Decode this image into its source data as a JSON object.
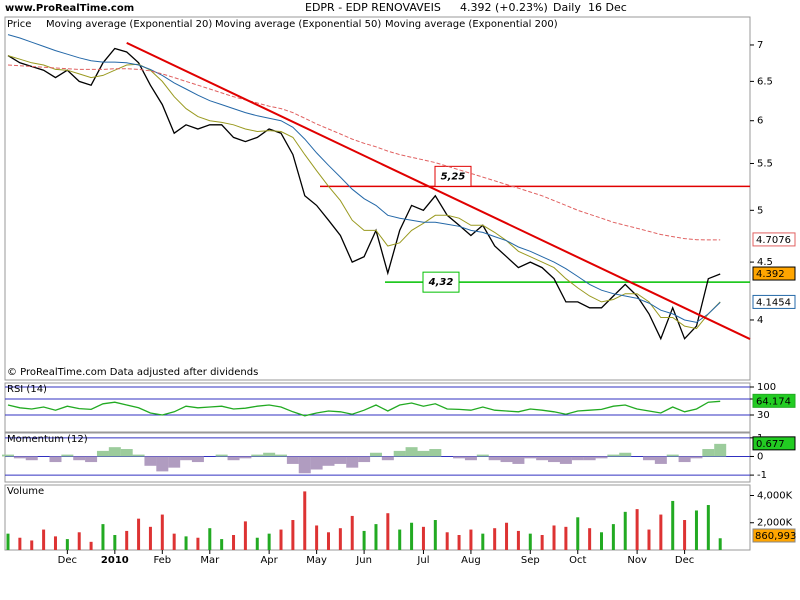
{
  "site": "www.ProRealTime.com",
  "header": {
    "symbol": "EDPR - EDP RENOVAVEIS",
    "quote": "4.392 (+0.23%)",
    "period": "Daily",
    "date": "16 Dec"
  },
  "chart_data": [
    {
      "type": "line",
      "title": "Price",
      "log_scale": true,
      "ylim": [
        3.54,
        7.41
      ],
      "yticks": [
        4,
        4.5,
        5,
        5.5,
        6,
        6.5,
        7
      ],
      "note": "© ProRealTime.com  Data adjusted after dividends",
      "series": [
        {
          "name": "Price",
          "color": "#000000",
          "show_last": true,
          "last_bg": "#ffa500",
          "values": [
            6.85,
            6.75,
            6.7,
            6.65,
            6.55,
            6.65,
            6.5,
            6.45,
            6.75,
            6.95,
            6.9,
            6.75,
            6.45,
            6.2,
            5.85,
            5.95,
            5.9,
            5.95,
            5.95,
            5.8,
            5.75,
            5.8,
            5.9,
            5.85,
            5.6,
            5.15,
            5.05,
            4.9,
            4.75,
            4.5,
            4.55,
            4.8,
            4.4,
            4.8,
            5.05,
            5.0,
            5.15,
            4.95,
            4.85,
            4.75,
            4.85,
            4.65,
            4.55,
            4.45,
            4.5,
            4.45,
            4.35,
            4.15,
            4.15,
            4.1,
            4.1,
            4.2,
            4.3,
            4.2,
            4.05,
            3.85,
            4.1,
            3.85,
            3.95,
            4.35,
            4.392
          ]
        },
        {
          "name": "Moving average (Exponential 20)",
          "color": "#9a9a20",
          "values": [
            6.85,
            6.8,
            6.75,
            6.72,
            6.66,
            6.65,
            6.6,
            6.55,
            6.58,
            6.65,
            6.72,
            6.73,
            6.65,
            6.5,
            6.3,
            6.15,
            6.05,
            6.0,
            5.98,
            5.95,
            5.9,
            5.87,
            5.88,
            5.87,
            5.8,
            5.6,
            5.42,
            5.25,
            5.1,
            4.9,
            4.8,
            4.8,
            4.65,
            4.68,
            4.8,
            4.87,
            4.95,
            4.95,
            4.92,
            4.85,
            4.85,
            4.78,
            4.7,
            4.6,
            4.55,
            4.5,
            4.45,
            4.35,
            4.27,
            4.2,
            4.15,
            4.17,
            4.22,
            4.22,
            4.15,
            4.02,
            4.02,
            3.95,
            3.93,
            4.05,
            4.15
          ]
        },
        {
          "name": "Moving average (Exponential 50)",
          "color": "#2468a8",
          "show_last": true,
          "values": [
            7.15,
            7.1,
            7.04,
            6.98,
            6.92,
            6.87,
            6.82,
            6.78,
            6.76,
            6.76,
            6.75,
            6.72,
            6.66,
            6.58,
            6.48,
            6.4,
            6.32,
            6.25,
            6.2,
            6.15,
            6.1,
            6.06,
            6.03,
            6.0,
            5.92,
            5.78,
            5.62,
            5.48,
            5.35,
            5.22,
            5.12,
            5.05,
            4.95,
            4.92,
            4.9,
            4.88,
            4.88,
            4.86,
            4.84,
            4.8,
            4.78,
            4.74,
            4.7,
            4.64,
            4.6,
            4.55,
            4.5,
            4.44,
            4.37,
            4.3,
            4.25,
            4.22,
            4.2,
            4.18,
            4.14,
            4.08,
            4.05,
            4.0,
            3.98,
            4.05,
            4.1454
          ]
        },
        {
          "name": "Moving average (Exponential 200)",
          "color": "#e06060",
          "dashed": true,
          "show_last": true,
          "values": [
            6.72,
            6.71,
            6.7,
            6.69,
            6.68,
            6.67,
            6.66,
            6.66,
            6.66,
            6.67,
            6.67,
            6.66,
            6.64,
            6.6,
            6.55,
            6.5,
            6.45,
            6.4,
            6.35,
            6.3,
            6.26,
            6.22,
            6.18,
            6.15,
            6.1,
            6.03,
            5.96,
            5.9,
            5.84,
            5.78,
            5.73,
            5.69,
            5.64,
            5.6,
            5.57,
            5.54,
            5.51,
            5.47,
            5.43,
            5.39,
            5.35,
            5.31,
            5.27,
            5.23,
            5.19,
            5.15,
            5.1,
            5.05,
            5.0,
            4.96,
            4.92,
            4.88,
            4.85,
            4.82,
            4.79,
            4.76,
            4.74,
            4.72,
            4.71,
            4.708,
            4.7076
          ]
        }
      ],
      "levels": [
        {
          "value": 5.25,
          "label": "5,25",
          "color": "#e00000"
        },
        {
          "value": 4.32,
          "label": "4,32",
          "color": "#00c000"
        }
      ],
      "trendline": {
        "color": "#e00000",
        "points": [
          [
            10,
            7.03
          ],
          [
            60,
            3.96
          ]
        ]
      }
    },
    {
      "type": "line",
      "title": "RSI (14)",
      "ylim": [
        -12.5,
        110
      ],
      "yticks": [
        100,
        70,
        30
      ],
      "grid": true,
      "grid_color": "#3030c0",
      "series": [
        {
          "color": "#22aa22",
          "show_last": true,
          "last_bg": "#22cc22",
          "values": [
            55,
            48,
            45,
            50,
            42,
            52,
            46,
            44,
            58,
            62,
            55,
            48,
            35,
            30,
            38,
            52,
            48,
            50,
            52,
            45,
            47,
            52,
            55,
            50,
            38,
            28,
            35,
            40,
            38,
            32,
            42,
            55,
            40,
            55,
            60,
            52,
            58,
            45,
            44,
            42,
            50,
            42,
            40,
            38,
            45,
            42,
            38,
            32,
            40,
            42,
            44,
            52,
            55,
            45,
            40,
            35,
            50,
            38,
            45,
            62,
            64.174
          ]
        }
      ]
    },
    {
      "type": "area",
      "title": "Momentum (12)",
      "ylim": [
        -1.37,
        1.26
      ],
      "yticks": [
        1,
        0,
        -1
      ],
      "up_color": "#9ccc9c",
      "down_color": "#b09cc0",
      "grid": true,
      "grid_color": "#3030c0",
      "values": [
        0.1,
        -0.1,
        -0.2,
        0,
        -0.3,
        0.1,
        -0.2,
        -0.3,
        0.3,
        0.5,
        0.4,
        0.1,
        -0.5,
        -0.8,
        -0.6,
        -0.2,
        -0.3,
        0,
        0.1,
        -0.2,
        -0.1,
        0.1,
        0.2,
        0.1,
        -0.4,
        -0.9,
        -0.7,
        -0.5,
        -0.4,
        -0.6,
        -0.3,
        0.2,
        -0.2,
        0.3,
        0.5,
        0.3,
        0.4,
        0,
        -0.1,
        -0.2,
        0.1,
        -0.2,
        -0.3,
        -0.4,
        -0.1,
        -0.2,
        -0.3,
        -0.4,
        -0.2,
        -0.2,
        -0.1,
        0.1,
        0.2,
        0,
        -0.2,
        -0.4,
        0.1,
        -0.3,
        -0.1,
        0.4,
        0.677
      ],
      "last_bg": "#22cc22"
    },
    {
      "type": "bar",
      "title": "Volume",
      "ylim": [
        0,
        4770000
      ],
      "yticks": [
        {
          "value": 4000000,
          "label": "4,000K"
        },
        {
          "value": 2000000,
          "label": "2,000K"
        }
      ],
      "up_color": "#22aa22",
      "down_color": "#dd3333",
      "values": [
        1200000,
        900000,
        700000,
        1500000,
        1000000,
        800000,
        1300000,
        600000,
        1900000,
        1100000,
        1400000,
        2300000,
        1700000,
        2600000,
        1200000,
        1000000,
        900000,
        1600000,
        800000,
        1100000,
        2100000,
        900000,
        1200000,
        1500000,
        2200000,
        4300000,
        1800000,
        1300000,
        1600000,
        2500000,
        1400000,
        1900000,
        2700000,
        1500000,
        2000000,
        1700000,
        2200000,
        1300000,
        1100000,
        1500000,
        1200000,
        1600000,
        2000000,
        1400000,
        1200000,
        1100000,
        1800000,
        1700000,
        2400000,
        1600000,
        1300000,
        1900000,
        2800000,
        3000000,
        1500000,
        2600000,
        3600000,
        2200000,
        2900000,
        3300000,
        860993
      ],
      "last_value_label": "860,993",
      "last_bg": "#ffa500",
      "categories": [
        null,
        null,
        null,
        null,
        null,
        "Dec",
        null,
        null,
        null,
        "2010",
        null,
        null,
        null,
        "Feb",
        null,
        null,
        null,
        "Mar",
        null,
        null,
        null,
        null,
        "Apr",
        null,
        null,
        null,
        "May",
        null,
        null,
        null,
        "Jun",
        null,
        null,
        null,
        null,
        "Jul",
        null,
        null,
        null,
        "Aug",
        null,
        null,
        null,
        null,
        "Sep",
        null,
        null,
        null,
        "Oct",
        null,
        null,
        null,
        null,
        "Nov",
        null,
        null,
        null,
        "Dec",
        null,
        null,
        null
      ]
    }
  ]
}
